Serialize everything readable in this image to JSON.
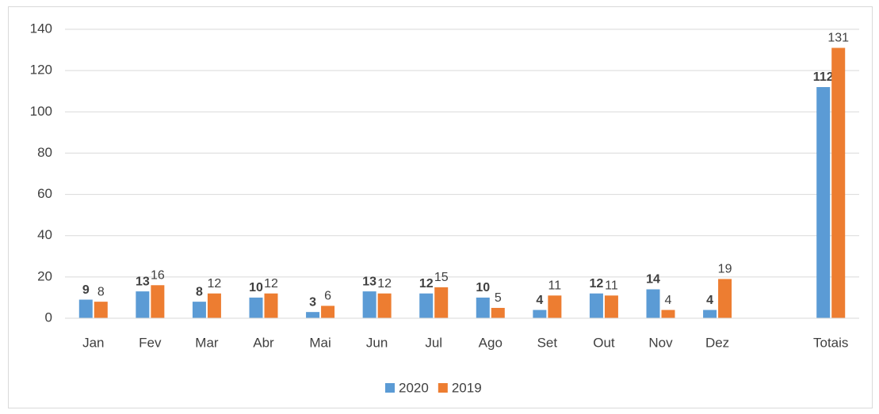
{
  "chart_data": {
    "type": "bar",
    "categories": [
      "Jan",
      "Fev",
      "Mar",
      "Abr",
      "Mai",
      "Jun",
      "Jul",
      "Ago",
      "Set",
      "Out",
      "Nov",
      "Dez",
      null,
      "Totais"
    ],
    "series": [
      {
        "name": "2020",
        "color": "#5b9bd5",
        "values": [
          9,
          13,
          8,
          10,
          3,
          13,
          12,
          10,
          4,
          12,
          14,
          4,
          null,
          112
        ]
      },
      {
        "name": "2019",
        "color": "#ed7d31",
        "values": [
          8,
          16,
          12,
          12,
          6,
          12,
          15,
          5,
          11,
          11,
          4,
          19,
          null,
          131
        ]
      }
    ],
    "ylim": [
      0,
      140
    ],
    "yticks": [
      0,
      20,
      40,
      60,
      80,
      100,
      120,
      140
    ],
    "grid": true,
    "legend": "bottom"
  }
}
